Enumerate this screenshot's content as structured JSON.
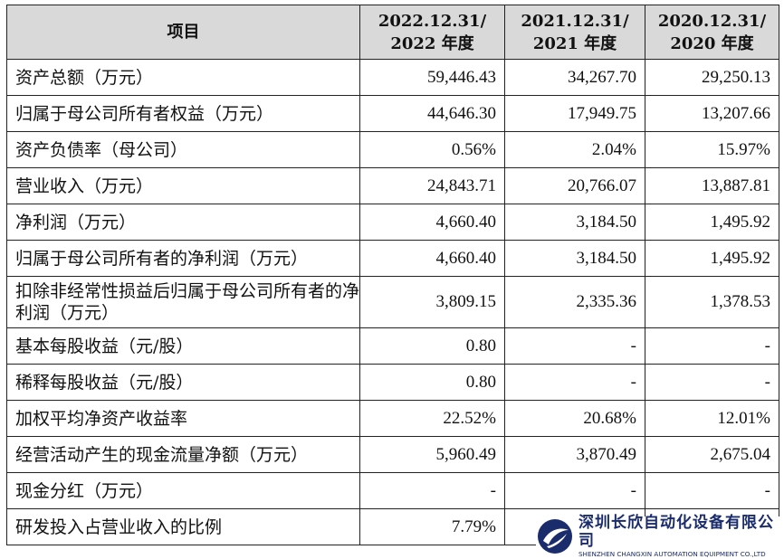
{
  "table": {
    "header": {
      "item": "项目",
      "periods": [
        {
          "line1": "2022.12.31/",
          "line2": "2022 年度"
        },
        {
          "line1": "2021.12.31/",
          "line2": "2021 年度"
        },
        {
          "line1": "2020.12.31/",
          "line2": "2020 年度"
        }
      ]
    },
    "rows": [
      {
        "label": "资产总额（万元）",
        "values": [
          "59,446.43",
          "34,267.70",
          "29,250.13"
        ]
      },
      {
        "label": "归属于母公司所有者权益（万元）",
        "values": [
          "44,646.30",
          "17,949.75",
          "13,207.66"
        ]
      },
      {
        "label": "资产负债率（母公司）",
        "values": [
          "0.56%",
          "2.04%",
          "15.97%"
        ]
      },
      {
        "label": "营业收入（万元）",
        "values": [
          "24,843.71",
          "20,766.07",
          "13,887.81"
        ]
      },
      {
        "label": "净利润（万元）",
        "values": [
          "4,660.40",
          "3,184.50",
          "1,495.92"
        ]
      },
      {
        "label": "归属于母公司所有者的净利润（万元）",
        "values": [
          "4,660.40",
          "3,184.50",
          "1,495.92"
        ]
      },
      {
        "label": "扣除非经常性损益后归属于母公司所有者的净利润（万元）",
        "values": [
          "3,809.15",
          "2,335.36",
          "1,378.53"
        ]
      },
      {
        "label": "基本每股收益（元/股）",
        "values": [
          "0.80",
          "-",
          "-"
        ]
      },
      {
        "label": "稀释每股收益（元/股）",
        "values": [
          "0.80",
          "-",
          "-"
        ]
      },
      {
        "label": "加权平均净资产收益率",
        "values": [
          "22.52%",
          "20.68%",
          "12.01%"
        ]
      },
      {
        "label": "经营活动产生的现金流量净额（万元）",
        "values": [
          "5,960.49",
          "3,870.49",
          "2,675.04"
        ]
      },
      {
        "label": "现金分红（万元）",
        "values": [
          "-",
          "-",
          "-"
        ]
      },
      {
        "label": "研发投入占营业收入的比例",
        "values": [
          "7.79%",
          "",
          ""
        ]
      }
    ]
  },
  "logo": {
    "name_cn": "深圳长欣自动化设备有限公司",
    "name_en": "SHENZHEN CHANGXIN AUTOMATION EQUIPMENT CO.,LTD",
    "color": "#1a2c6b"
  }
}
